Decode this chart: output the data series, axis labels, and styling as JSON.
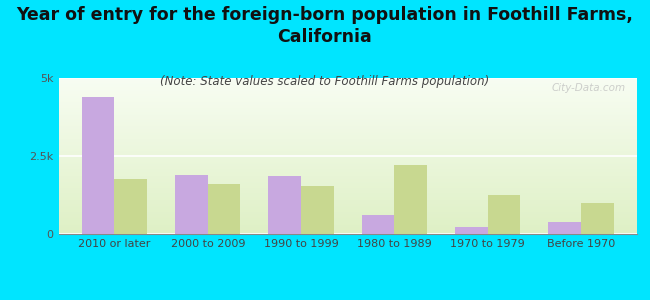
{
  "title": "Year of entry for the foreign-born population in Foothill Farms,\nCalifornia",
  "subtitle": "(Note: State values scaled to Foothill Farms population)",
  "categories": [
    "2010 or later",
    "2000 to 2009",
    "1990 to 1999",
    "1980 to 1989",
    "1970 to 1979",
    "Before 1970"
  ],
  "foothill_values": [
    4400,
    1900,
    1850,
    600,
    220,
    400
  ],
  "california_values": [
    1750,
    1600,
    1550,
    2200,
    1250,
    1000
  ],
  "foothill_color": "#c8a8e0",
  "california_color": "#c8d890",
  "bg_color": "#00e5ff",
  "ylim": [
    0,
    5000
  ],
  "yticks": [
    0,
    2500,
    5000
  ],
  "ytick_labels": [
    "0",
    "2.5k",
    "5k"
  ],
  "bar_width": 0.35,
  "title_fontsize": 12.5,
  "subtitle_fontsize": 8.5,
  "tick_fontsize": 8,
  "legend_fontsize": 9,
  "watermark": "City-Data.com"
}
